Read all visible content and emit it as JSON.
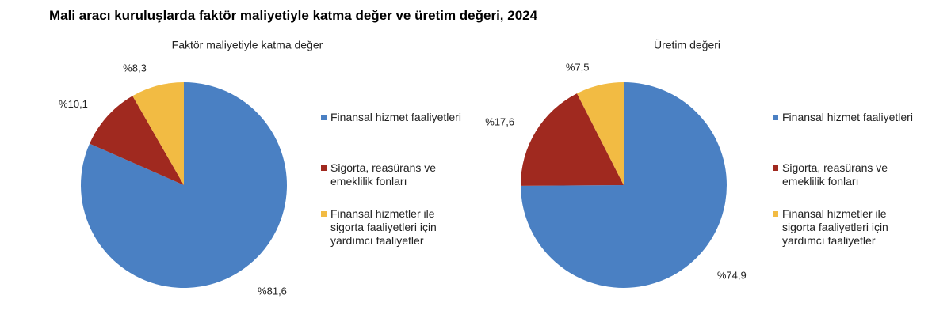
{
  "title": "Mali aracı kuruluşlarda faktör maliyetiyle katma değer ve üretim değeri, 2024",
  "chart_data": [
    {
      "type": "pie",
      "title": "Faktör maliyetiyle katma değer",
      "categories": [
        "Finansal hizmet faaliyetleri",
        "Sigorta, reasürans ve emeklilik fonları",
        "Finansal hizmetler ile sigorta faaliyetleri için yardımcı faaliyetler"
      ],
      "values": [
        81.6,
        10.1,
        8.3
      ],
      "value_labels": [
        "%81,6",
        "%10,1",
        "%8,3"
      ],
      "colors": [
        "#4a80c3",
        "#a0291f",
        "#f2bb43"
      ]
    },
    {
      "type": "pie",
      "title": "Üretim değeri",
      "categories": [
        "Finansal hizmet faaliyetleri",
        "Sigorta, reasürans ve emeklilik fonları",
        "Finansal hizmetler ile sigorta faaliyetleri için yardımcı faaliyetler"
      ],
      "values": [
        74.9,
        17.6,
        7.5
      ],
      "value_labels": [
        "%74,9",
        "%17,6",
        "%7,5"
      ],
      "colors": [
        "#4a80c3",
        "#a0291f",
        "#f2bb43"
      ]
    }
  ]
}
